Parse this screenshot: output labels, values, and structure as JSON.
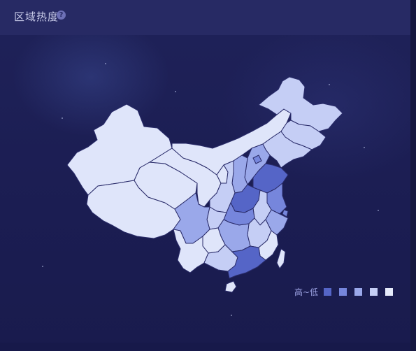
{
  "header": {
    "title": "区域热度",
    "help_icon": "question-circle-icon"
  },
  "legend": {
    "label": "高~低",
    "levels": [
      {
        "color": "#5565c7"
      },
      {
        "color": "#7686dc"
      },
      {
        "color": "#9aa8ea"
      },
      {
        "color": "#c5cef5"
      },
      {
        "color": "#e6ebfb"
      }
    ]
  },
  "colors": {
    "background": "#1b1d52",
    "header": "#272a64",
    "border": "#2a2c6a"
  }
}
